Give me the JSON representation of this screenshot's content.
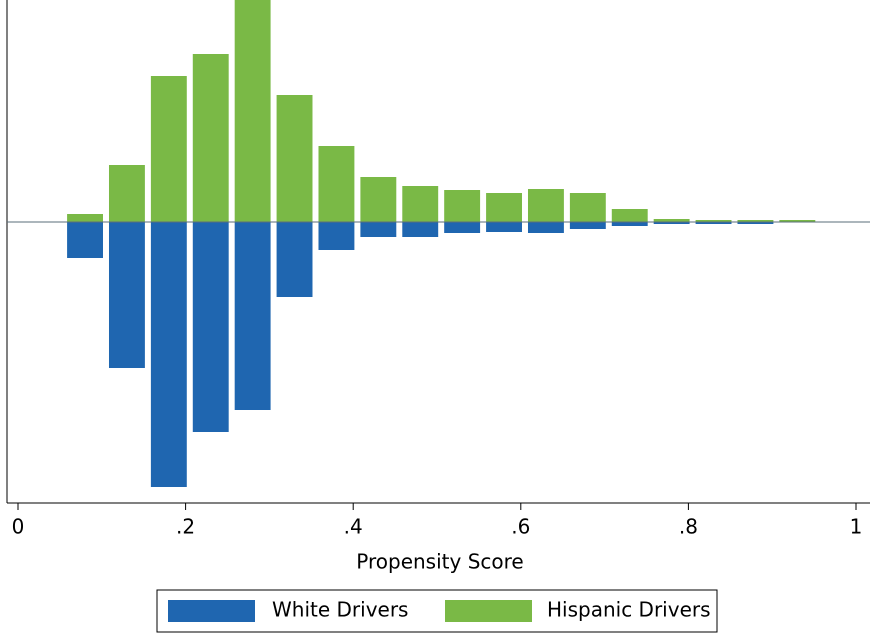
{
  "chart_data": {
    "type": "mirrored-histogram",
    "xlabel": "Propensity Score",
    "bins": [
      0.055,
      0.105,
      0.155,
      0.205,
      0.255,
      0.305,
      0.355,
      0.405,
      0.455,
      0.505,
      0.555,
      0.605,
      0.655,
      0.705,
      0.755,
      0.805,
      0.855,
      0.905,
      0.955
    ],
    "series": [
      {
        "name": "White Drivers",
        "color": "#1f66b0",
        "values": [
          -0.36,
          -1.46,
          -2.65,
          -2.1,
          -1.88,
          -0.75,
          -0.28,
          -0.15,
          -0.15,
          -0.11,
          -0.1,
          -0.11,
          -0.07,
          -0.04,
          -0.02,
          -0.02,
          -0.02,
          0
        ]
      },
      {
        "name": "Hispanic Drivers",
        "color": "#7ab946",
        "values": [
          0.08,
          0.57,
          1.46,
          1.68,
          2.25,
          1.27,
          0.76,
          0.45,
          0.36,
          0.32,
          0.29,
          0.33,
          0.29,
          0.13,
          0.03,
          0.02,
          0.02,
          0.02
        ]
      }
    ],
    "xlim": [
      0,
      1
    ],
    "xticks": [
      0,
      {
        "value": 0.2,
        "label": ".2"
      },
      {
        "value": 0.4,
        "label": ".4"
      },
      {
        "value": 0.6,
        "label": ".6"
      },
      {
        "value": 0.8,
        "label": ".8"
      },
      1
    ],
    "ylim": [
      -2.81,
      2.22
    ]
  }
}
